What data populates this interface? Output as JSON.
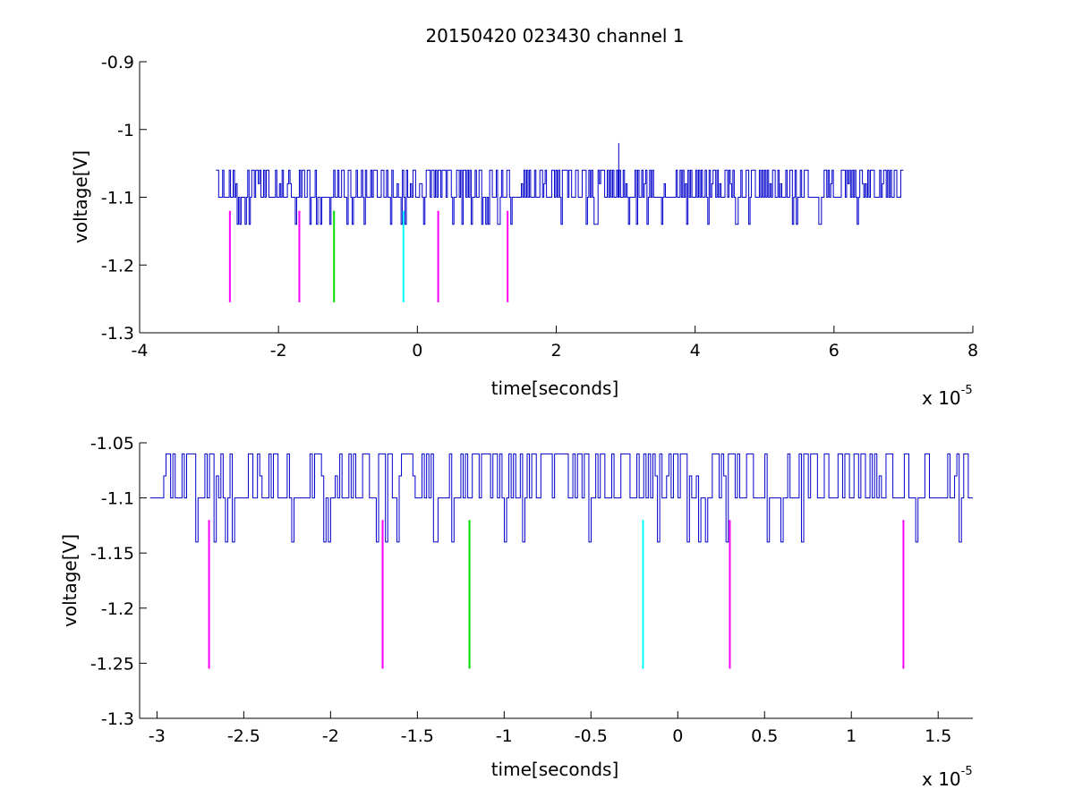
{
  "title": "20150420 023430 channel 1",
  "chart_data": [
    {
      "type": "line",
      "xlabel": "time[seconds]",
      "ylabel": "voltage[V]",
      "x_multiplier_label": "x 10",
      "x_multiplier_exponent": "-5",
      "xlim": [
        -4,
        8
      ],
      "ylim": [
        -1.3,
        -0.9
      ],
      "x_ticks": [
        -4,
        -2,
        0,
        2,
        4,
        6,
        8
      ],
      "x_tick_labels": [
        "-4",
        "-2",
        "0",
        "2",
        "4",
        "6",
        "8"
      ],
      "y_ticks": [
        -1.3,
        -1.2,
        -1.1,
        -1,
        -0.9
      ],
      "y_tick_labels": [
        "-1.3",
        "-1.2",
        "-1.1",
        "-1",
        "-0.9"
      ],
      "grid": false,
      "signal": {
        "color": "#0000cc",
        "x_range": [
          -2.9,
          7.0
        ],
        "baseline": -1.1,
        "high": -1.06,
        "low": -1.14,
        "spike": {
          "x": 2.9,
          "y": -1.02
        }
      },
      "markers": [
        {
          "x": -2.7,
          "y_top": -1.12,
          "y_bottom": -1.255,
          "color": "#ff00ff"
        },
        {
          "x": -1.7,
          "y_top": -1.12,
          "y_bottom": -1.255,
          "color": "#ff00ff"
        },
        {
          "x": -1.2,
          "y_top": -1.12,
          "y_bottom": -1.255,
          "color": "#00dd00"
        },
        {
          "x": -0.2,
          "y_top": -1.12,
          "y_bottom": -1.255,
          "color": "#00ffff"
        },
        {
          "x": 0.3,
          "y_top": -1.12,
          "y_bottom": -1.255,
          "color": "#ff00ff"
        },
        {
          "x": 1.3,
          "y_top": -1.12,
          "y_bottom": -1.255,
          "color": "#ff00ff"
        }
      ]
    },
    {
      "type": "line",
      "xlabel": "time[seconds]",
      "ylabel": "voltage[V]",
      "x_multiplier_label": "x 10",
      "x_multiplier_exponent": "-5",
      "xlim": [
        -3.1,
        1.7
      ],
      "ylim": [
        -1.3,
        -1.05
      ],
      "x_ticks": [
        -3,
        -2.5,
        -2,
        -1.5,
        -1,
        -0.5,
        0,
        0.5,
        1,
        1.5
      ],
      "x_tick_labels": [
        "-3",
        "-2.5",
        "-2",
        "-1.5",
        "-1",
        "-0.5",
        "0",
        "0.5",
        "1",
        "1.5"
      ],
      "y_ticks": [
        -1.3,
        -1.25,
        -1.2,
        -1.15,
        -1.1,
        -1.05
      ],
      "y_tick_labels": [
        "-1.3",
        "-1.25",
        "-1.2",
        "-1.15",
        "-1.1",
        "-1.05"
      ],
      "grid": false,
      "signal": {
        "color": "#0000cc",
        "x_range": [
          -3.04,
          1.7
        ],
        "baseline": -1.1,
        "high": -1.06,
        "low": -1.14
      },
      "markers": [
        {
          "x": -2.7,
          "y_top": -1.12,
          "y_bottom": -1.255,
          "color": "#ff00ff"
        },
        {
          "x": -1.7,
          "y_top": -1.12,
          "y_bottom": -1.255,
          "color": "#ff00ff"
        },
        {
          "x": -1.2,
          "y_top": -1.12,
          "y_bottom": -1.255,
          "color": "#00dd00"
        },
        {
          "x": -0.2,
          "y_top": -1.12,
          "y_bottom": -1.255,
          "color": "#00ffff"
        },
        {
          "x": 0.3,
          "y_top": -1.12,
          "y_bottom": -1.255,
          "color": "#ff00ff"
        },
        {
          "x": 1.3,
          "y_top": -1.12,
          "y_bottom": -1.255,
          "color": "#ff00ff"
        }
      ]
    }
  ]
}
